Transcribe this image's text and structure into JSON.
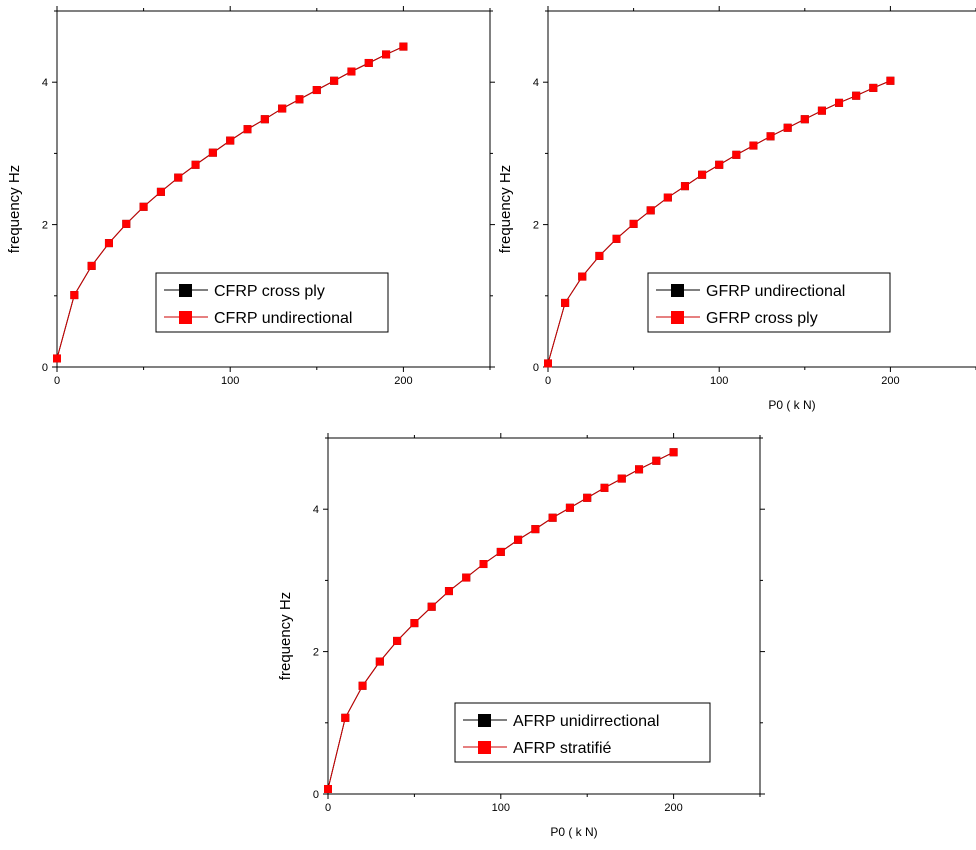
{
  "colors": {
    "series_a": "#000000",
    "series_b": "#ff0000",
    "line": "#cc0000",
    "axes": "#000000",
    "background": "#ffffff"
  },
  "chart_data": [
    {
      "type": "line",
      "xlabel": "",
      "ylabel": "frequency  Hz",
      "xlim": [
        0,
        250
      ],
      "ylim": [
        0,
        5
      ],
      "xticks": [
        "0",
        "100",
        "200"
      ],
      "yticks": [
        "0",
        "2",
        "4"
      ],
      "legend_position": "lower-right",
      "grid": false,
      "x": [
        0,
        10,
        20,
        30,
        40,
        50,
        60,
        70,
        80,
        90,
        100,
        110,
        120,
        130,
        140,
        150,
        160,
        170,
        180,
        190,
        200
      ],
      "series": [
        {
          "name": "CFRP cross ply",
          "values": [
            0.12,
            1.01,
            1.42,
            1.74,
            2.01,
            2.25,
            2.46,
            2.66,
            2.84,
            3.01,
            3.18,
            3.34,
            3.48,
            3.63,
            3.76,
            3.89,
            4.02,
            4.15,
            4.27,
            4.39,
            4.5
          ]
        },
        {
          "name": "CFRP undirectional",
          "values": [
            0.12,
            1.01,
            1.42,
            1.74,
            2.01,
            2.25,
            2.46,
            2.66,
            2.84,
            3.01,
            3.18,
            3.34,
            3.48,
            3.63,
            3.76,
            3.89,
            4.02,
            4.15,
            4.27,
            4.39,
            4.5
          ]
        }
      ]
    },
    {
      "type": "line",
      "xlabel": "P0 ( k N)",
      "ylabel": "frequency  Hz",
      "xlim": [
        0,
        250
      ],
      "ylim": [
        0,
        5
      ],
      "xticks": [
        "0",
        "100",
        "200"
      ],
      "yticks": [
        "0",
        "2",
        "4"
      ],
      "legend_position": "lower-right",
      "grid": false,
      "x": [
        0,
        10,
        20,
        30,
        40,
        50,
        60,
        70,
        80,
        90,
        100,
        110,
        120,
        130,
        140,
        150,
        160,
        170,
        180,
        190,
        200
      ],
      "series": [
        {
          "name": "GFRP undirectional",
          "values": [
            0.05,
            0.9,
            1.27,
            1.56,
            1.8,
            2.01,
            2.2,
            2.38,
            2.54,
            2.7,
            2.84,
            2.98,
            3.11,
            3.24,
            3.36,
            3.48,
            3.6,
            3.71,
            3.81,
            3.92,
            4.02
          ]
        },
        {
          "name": "GFRP cross ply",
          "values": [
            0.05,
            0.9,
            1.27,
            1.56,
            1.8,
            2.01,
            2.2,
            2.38,
            2.54,
            2.7,
            2.84,
            2.98,
            3.11,
            3.24,
            3.36,
            3.48,
            3.6,
            3.71,
            3.81,
            3.92,
            4.02
          ]
        }
      ]
    },
    {
      "type": "line",
      "xlabel": "P0 ( k N)",
      "ylabel": "frequency  Hz",
      "xlim": [
        0,
        250
      ],
      "ylim": [
        0,
        5
      ],
      "xticks": [
        "0",
        "100",
        "200"
      ],
      "yticks": [
        "0",
        "2",
        "4"
      ],
      "legend_position": "lower-right",
      "grid": false,
      "x": [
        0,
        10,
        20,
        30,
        40,
        50,
        60,
        70,
        80,
        90,
        100,
        110,
        120,
        130,
        140,
        150,
        160,
        170,
        180,
        190,
        200
      ],
      "series": [
        {
          "name": "AFRP unidirrectional",
          "values": [
            0.07,
            1.07,
            1.52,
            1.86,
            2.15,
            2.4,
            2.63,
            2.85,
            3.04,
            3.23,
            3.4,
            3.57,
            3.72,
            3.88,
            4.02,
            4.16,
            4.3,
            4.43,
            4.56,
            4.68,
            4.8
          ]
        },
        {
          "name": "AFRP stratifié",
          "values": [
            0.07,
            1.07,
            1.52,
            1.86,
            2.15,
            2.4,
            2.63,
            2.85,
            3.04,
            3.23,
            3.4,
            3.57,
            3.72,
            3.88,
            4.02,
            4.16,
            4.3,
            4.43,
            4.56,
            4.68,
            4.8
          ]
        }
      ]
    }
  ]
}
